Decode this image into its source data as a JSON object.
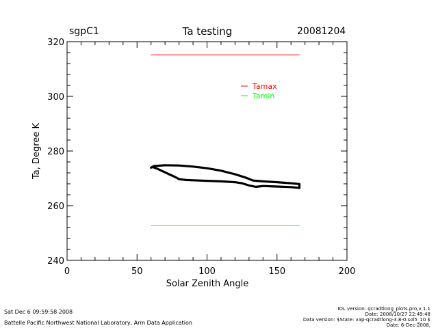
{
  "header": {
    "site": "sgpC1",
    "date": "20081204"
  },
  "chart_data": {
    "type": "line",
    "title": "Ta testing",
    "xlabel": "Solar Zenith Angle",
    "ylabel": "Ta, Degree K",
    "xlim": [
      0,
      200
    ],
    "ylim": [
      240,
      320
    ],
    "xticks": [
      0,
      50,
      100,
      150,
      200
    ],
    "yticks": [
      240,
      260,
      280,
      300,
      320
    ],
    "x_minor_step": 10,
    "y_minor_step": 4,
    "grid": false,
    "legend_position": "top-right",
    "series": [
      {
        "name": "Tamax",
        "color": "#ff0000",
        "legend": true,
        "stroke_weight": "thin",
        "x": [
          60,
          166
        ],
        "y": [
          315.2,
          315.2
        ]
      },
      {
        "name": "Tamin",
        "color": "#00ff00",
        "legend": true,
        "stroke_weight": "thin",
        "x": [
          60,
          166
        ],
        "y": [
          252.8,
          252.8
        ]
      },
      {
        "name": "Ta",
        "color": "#000000",
        "legend": false,
        "stroke_weight": "thick",
        "x": [
          60,
          62,
          70,
          80,
          90,
          100,
          110,
          120,
          128,
          133,
          140,
          150,
          160,
          166,
          166,
          160,
          150,
          140,
          135,
          130,
          125,
          120,
          110,
          100,
          90,
          85,
          80,
          78,
          75,
          70,
          65,
          61,
          60
        ],
        "y": [
          273.9,
          274.5,
          274.8,
          274.7,
          274.3,
          273.7,
          272.8,
          271.5,
          270.2,
          269.2,
          268.9,
          268.6,
          268.2,
          267.9,
          266.5,
          266.8,
          267.0,
          267.2,
          266.9,
          267.4,
          268.2,
          268.6,
          268.9,
          269.1,
          269.3,
          269.4,
          269.7,
          270.3,
          271.0,
          272.2,
          273.4,
          274.2,
          273.9
        ]
      }
    ]
  },
  "footer": {
    "run_date": "Sat Dec  6 09:59:58 2008",
    "org": "Battelle Pacific Northwest National Laboratory, Arm Data Application",
    "idl_version": "IDL version: qcradtlong_plots.pro,v 1.1",
    "idl_date": "Date: 2008/10/27 22:49:48",
    "data_version": "Data version: $State: vap-qcradtlong-3.8-0.sol5_10 $",
    "data_date": "Date: 6-Dec-2008,"
  }
}
